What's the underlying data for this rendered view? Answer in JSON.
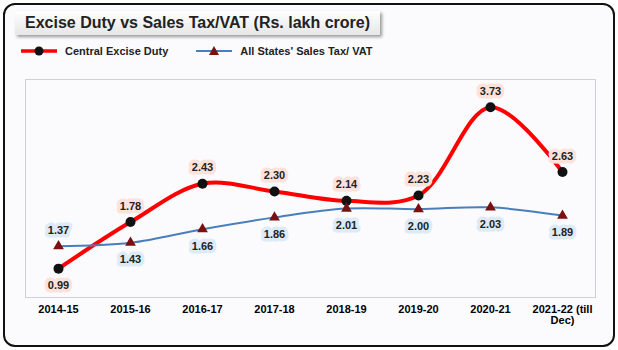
{
  "chart_data": {
    "type": "line",
    "title": "Excise Duty vs Sales Tax/VAT (Rs. lakh crore)",
    "categories": [
      "2014-15",
      "2015-16",
      "2016-17",
      "2017-18",
      "2018-19",
      "2019-20",
      "2020-21",
      "2021-22 (till Dec)"
    ],
    "series": [
      {
        "name": "Central Excise Duty",
        "color": "#ff0000",
        "marker": "circle",
        "line_style": "solid",
        "values": [
          0.99,
          1.78,
          2.43,
          2.3,
          2.14,
          2.23,
          3.73,
          2.63
        ],
        "value_labels": [
          "0.99",
          "1.78",
          "2.43",
          "2.30",
          "2.14",
          "2.23",
          "3.73",
          "2.63"
        ]
      },
      {
        "name": "All States' Sales Tax/ VAT",
        "color": "#4a7ebb",
        "marker": "triangle",
        "line_style": "solid",
        "values": [
          1.37,
          1.43,
          1.66,
          1.86,
          2.01,
          2.0,
          2.03,
          1.89
        ],
        "value_labels": [
          "1.37",
          "1.43",
          "1.66",
          "1.86",
          "2.01",
          "2.00",
          "2.03",
          "1.89"
        ]
      }
    ],
    "ylim": [
      0.5,
      4.2
    ],
    "yticks": [],
    "tick_labels": "x",
    "data_labels": true,
    "legend": "top",
    "grid": false
  }
}
